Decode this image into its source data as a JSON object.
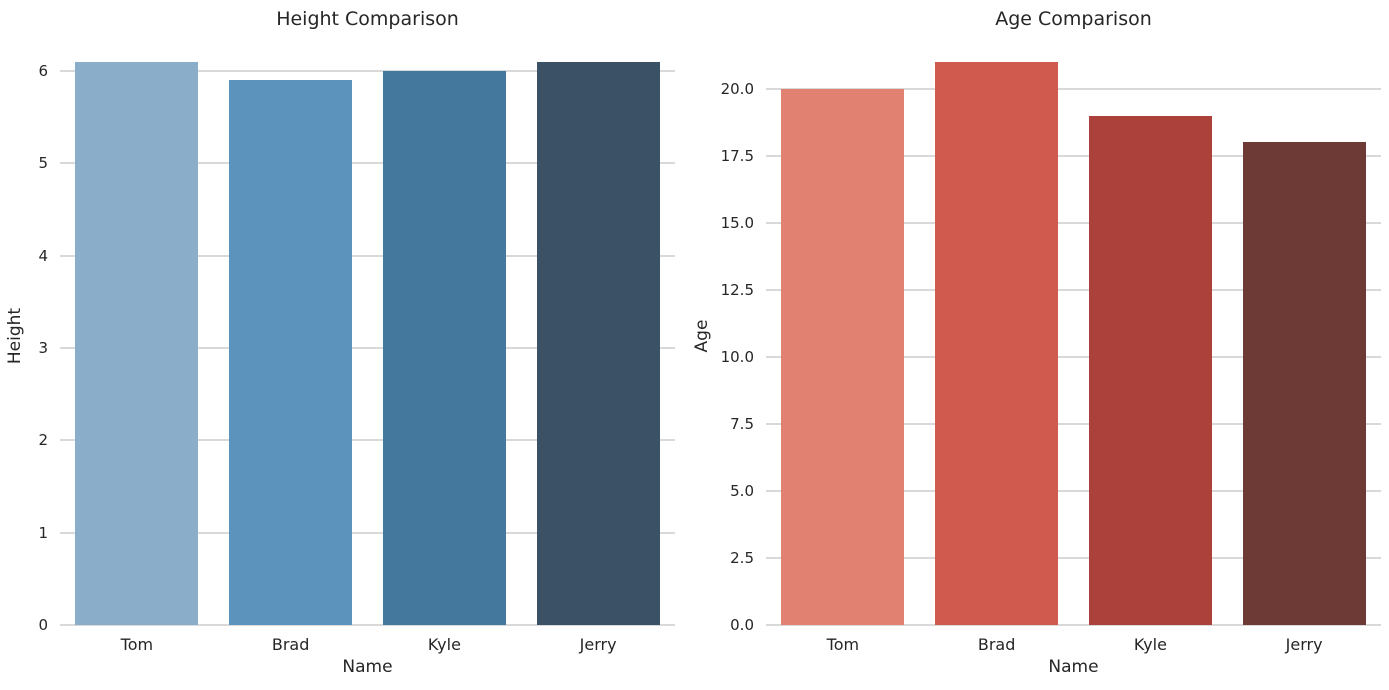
{
  "figure": {
    "background_color": "#ffffff",
    "text_color": "#262626",
    "grid_color": "#d9d9d9"
  },
  "chart_data": [
    {
      "type": "bar",
      "title": "Height Comparison",
      "xlabel": "Name",
      "ylabel": "Height",
      "categories": [
        "Tom",
        "Brad",
        "Kyle",
        "Jerry"
      ],
      "values": [
        6.1,
        5.9,
        6.0,
        6.1
      ],
      "bar_colors": [
        "#8aaec9",
        "#5c93bd",
        "#44789c",
        "#3a5166"
      ],
      "ylim": [
        0,
        6.26
      ],
      "yticks": [
        0,
        1,
        2,
        3,
        4,
        5,
        6
      ],
      "ytick_labels": [
        "0",
        "1",
        "2",
        "3",
        "4",
        "5",
        "6"
      ],
      "grid": true,
      "legend": "none",
      "bar_width_fraction": 0.8
    },
    {
      "type": "bar",
      "title": "Age Comparison",
      "xlabel": "Name",
      "ylabel": "Age",
      "categories": [
        "Tom",
        "Brad",
        "Kyle",
        "Jerry"
      ],
      "values": [
        20,
        21,
        19,
        18
      ],
      "bar_colors": [
        "#e08172",
        "#d05a4e",
        "#ac403a",
        "#6e3a36"
      ],
      "ylim": [
        0,
        21.56
      ],
      "yticks": [
        0,
        2.5,
        5,
        7.5,
        10,
        12.5,
        15,
        17.5,
        20
      ],
      "ytick_labels": [
        "0.0",
        "2.5",
        "5.0",
        "7.5",
        "10.0",
        "12.5",
        "15.0",
        "17.5",
        "20.0"
      ],
      "grid": true,
      "legend": "none",
      "bar_width_fraction": 0.8
    }
  ]
}
